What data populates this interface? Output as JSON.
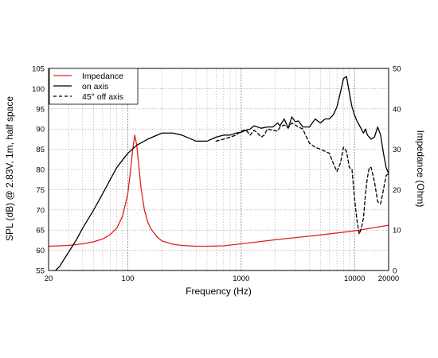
{
  "chart_data": {
    "type": "line",
    "xlabel": "Frequency (Hz)",
    "ylabel_left": "SPL (dB) @ 2.83V, 1m, half space",
    "ylabel_right": "Impedance (Ohm)",
    "x_scale": "log",
    "xlim": [
      20,
      20000
    ],
    "ylim_left": [
      55,
      105
    ],
    "ylim_right": [
      0,
      50
    ],
    "x_ticks": [
      {
        "value": 20,
        "label": "20"
      },
      {
        "value": 100,
        "label": "100"
      },
      {
        "value": 1000,
        "label": "1000"
      },
      {
        "value": 10000,
        "label": "10000"
      },
      {
        "value": 20000,
        "label": "20000"
      }
    ],
    "y_ticks_left": [
      55,
      60,
      65,
      70,
      75,
      80,
      85,
      90,
      95,
      100,
      105
    ],
    "y_ticks_right": [
      0,
      10,
      20,
      30,
      40,
      50
    ],
    "grid": true,
    "legend_position": "top-left",
    "series": [
      {
        "name": "Impedance",
        "axis": "right",
        "color": "#e0201c",
        "dash": "solid",
        "x": [
          20,
          30,
          40,
          50,
          60,
          70,
          80,
          90,
          100,
          105,
          110,
          115,
          120,
          125,
          130,
          140,
          150,
          160,
          180,
          200,
          250,
          300,
          400,
          500,
          700,
          1000,
          2000,
          5000,
          10000,
          20000
        ],
        "y": [
          6,
          6.2,
          6.6,
          7.1,
          7.8,
          8.9,
          10.5,
          13.5,
          19,
          24,
          29.5,
          33.5,
          31,
          26,
          21,
          15,
          12,
          10.3,
          8.4,
          7.3,
          6.5,
          6.2,
          6.0,
          6.0,
          6.1,
          6.6,
          7.6,
          8.8,
          9.8,
          11.2
        ]
      },
      {
        "name": "on axis",
        "axis": "left",
        "color": "#000000",
        "dash": "solid",
        "x": [
          23,
          25,
          30,
          35,
          40,
          50,
          60,
          70,
          80,
          100,
          120,
          150,
          200,
          250,
          300,
          400,
          500,
          600,
          700,
          800,
          900,
          1000,
          1100,
          1200,
          1300,
          1500,
          1700,
          1900,
          2100,
          2200,
          2400,
          2600,
          2800,
          3000,
          3200,
          3500,
          4000,
          4500,
          5000,
          5500,
          6000,
          6500,
          7000,
          7500,
          8000,
          8500,
          9000,
          9500,
          10000,
          10500,
          11000,
          11500,
          12000,
          12500,
          13000,
          14000,
          15000,
          16000,
          17000,
          18000,
          19000,
          20000
        ],
        "y": [
          55,
          56,
          59.5,
          62.5,
          65.5,
          70,
          74,
          77.5,
          80.5,
          84,
          86,
          87.5,
          89,
          89,
          88.5,
          87,
          87,
          88,
          88.5,
          88.5,
          89,
          89.2,
          89.7,
          90,
          90.8,
          90.2,
          90.5,
          90.5,
          91.5,
          90.8,
          92.5,
          90.2,
          93,
          91.8,
          92,
          90.5,
          90.5,
          92.5,
          91.5,
          92.5,
          92.5,
          93.5,
          95.5,
          99,
          102.5,
          103,
          99,
          95.5,
          93.5,
          92,
          91,
          90,
          89,
          90,
          88.5,
          87.5,
          88,
          90.5,
          88.5,
          84,
          80.5,
          79
        ]
      },
      {
        "name": "45° off axis",
        "axis": "left",
        "color": "#000000",
        "dash": "dashed",
        "x": [
          600,
          700,
          800,
          900,
          1000,
          1100,
          1200,
          1300,
          1400,
          1500,
          1600,
          1700,
          1900,
          2100,
          2200,
          2400,
          2600,
          2800,
          3000,
          3200,
          3500,
          3700,
          4000,
          4500,
          5000,
          5500,
          6000,
          6500,
          7000,
          7500,
          8000,
          8500,
          9000,
          9500,
          10000,
          10500,
          11000,
          11500,
          12000,
          12500,
          13000,
          13500,
          14000,
          15000,
          16000,
          17000,
          18000,
          19000,
          20000
        ],
        "y": [
          87,
          87.5,
          88,
          88.5,
          89.5,
          89.8,
          88.5,
          89.7,
          89,
          88,
          88.5,
          90,
          89.7,
          89.5,
          90.5,
          91,
          90.3,
          91.5,
          91,
          90.5,
          90,
          88.5,
          86.5,
          85.5,
          85,
          84.5,
          84,
          81.5,
          79.5,
          81.5,
          85.5,
          84.5,
          80.5,
          80,
          73,
          67.5,
          64,
          65.5,
          68,
          74,
          78,
          80.5,
          80.5,
          77,
          72,
          71.5,
          75,
          78.5,
          79
        ]
      }
    ]
  }
}
